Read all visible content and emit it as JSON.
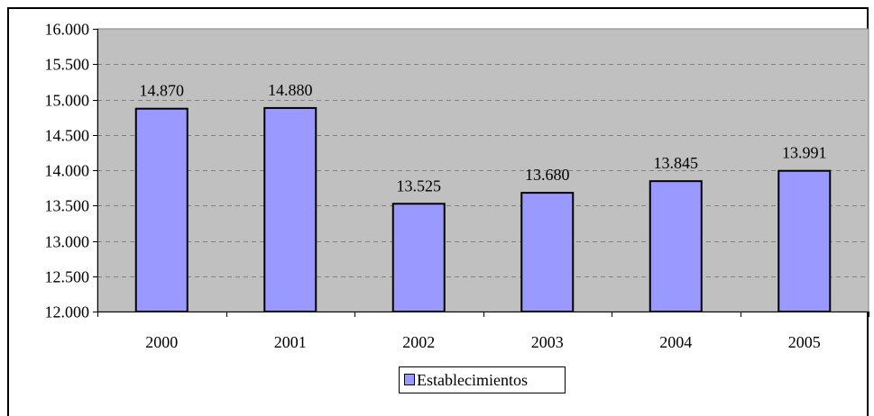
{
  "chart_data": {
    "type": "bar",
    "categories": [
      "2000",
      "2001",
      "2002",
      "2003",
      "2004",
      "2005"
    ],
    "series": [
      {
        "name": "Establecimientos",
        "values": [
          14870,
          14880,
          13525,
          13680,
          13845,
          13991
        ],
        "labels": [
          "14.870",
          "14.880",
          "13.525",
          "13.680",
          "13.845",
          "13.991"
        ]
      }
    ],
    "ylim": [
      12000,
      16000
    ],
    "yticks": [
      12000,
      12500,
      13000,
      13500,
      14000,
      14500,
      15000,
      15500,
      16000
    ],
    "ytick_labels": [
      "12.000",
      "12.500",
      "13.000",
      "13.500",
      "14.000",
      "14.500",
      "15.000",
      "15.500",
      "16.000"
    ],
    "grid": true,
    "legend_position": "bottom-center",
    "colors": {
      "bar": "#9999ff",
      "plot_background": "#c0c0c0",
      "gridline": "#808080"
    }
  }
}
